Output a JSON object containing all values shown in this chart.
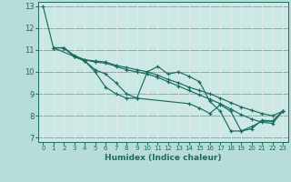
{
  "title": "",
  "xlabel": "Humidex (Indice chaleur)",
  "xlim": [
    -0.5,
    23.5
  ],
  "ylim": [
    6.8,
    13.2
  ],
  "yticks": [
    7,
    8,
    9,
    10,
    11,
    12,
    13
  ],
  "xticks": [
    0,
    1,
    2,
    3,
    4,
    5,
    6,
    7,
    8,
    9,
    10,
    11,
    12,
    13,
    14,
    15,
    16,
    17,
    18,
    19,
    20,
    21,
    22,
    23
  ],
  "bg_color": "#b8ddd8",
  "plot_bg_color": "#cce8e4",
  "line_color": "#1a6b60",
  "grid_color_v": "#e8e8e8",
  "grid_color_h": "#e8a0a0",
  "lines": [
    {
      "x": [
        0,
        1,
        2,
        3,
        4,
        5,
        6,
        7,
        8,
        9,
        10,
        11,
        12,
        13,
        14,
        15,
        16,
        17,
        18,
        19,
        20,
        21,
        22,
        23
      ],
      "y": [
        13.0,
        11.1,
        11.1,
        10.7,
        10.5,
        10.0,
        9.3,
        9.0,
        8.8,
        8.8,
        10.0,
        10.25,
        9.9,
        10.0,
        9.8,
        9.55,
        8.65,
        8.2,
        7.3,
        7.3,
        7.5,
        7.75,
        7.75,
        8.2
      ]
    },
    {
      "x": [
        1,
        2,
        3,
        4,
        5,
        6,
        7,
        8,
        9,
        10,
        11,
        12,
        13,
        14,
        15,
        16,
        17,
        18,
        19,
        20,
        21,
        22,
        23
      ],
      "y": [
        11.1,
        11.1,
        10.75,
        10.55,
        10.5,
        10.45,
        10.3,
        10.2,
        10.1,
        10.0,
        9.85,
        9.65,
        9.5,
        9.3,
        9.15,
        9.0,
        8.8,
        8.6,
        8.4,
        8.25,
        8.1,
        8.0,
        8.2
      ]
    },
    {
      "x": [
        1,
        2,
        3,
        4,
        5,
        6,
        7,
        8,
        9,
        10,
        11,
        12,
        13,
        14,
        15,
        16,
        17,
        18,
        19,
        20,
        21,
        22,
        23
      ],
      "y": [
        11.1,
        11.1,
        10.7,
        10.55,
        10.45,
        10.4,
        10.25,
        10.1,
        10.0,
        9.9,
        9.75,
        9.55,
        9.35,
        9.15,
        8.95,
        8.75,
        8.55,
        8.3,
        8.05,
        7.85,
        7.7,
        7.65,
        8.2
      ]
    },
    {
      "x": [
        1,
        3,
        4,
        5,
        6,
        7,
        8,
        9,
        14,
        15,
        16,
        17,
        18,
        19,
        20,
        21,
        22,
        23
      ],
      "y": [
        11.1,
        10.7,
        10.5,
        10.1,
        9.9,
        9.5,
        9.0,
        8.8,
        8.55,
        8.35,
        8.1,
        8.5,
        8.2,
        7.3,
        7.4,
        7.8,
        7.75,
        8.2
      ]
    }
  ]
}
